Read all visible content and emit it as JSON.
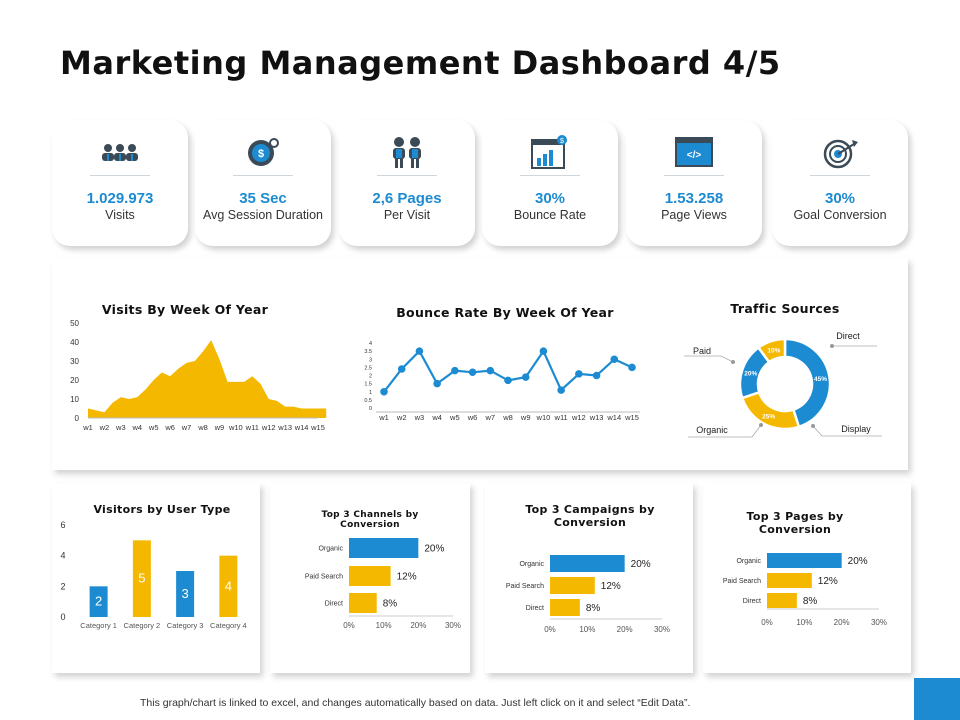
{
  "title": "Marketing Management Dashboard 4/5",
  "colors": {
    "blue": "#1c8bd1",
    "yellow": "#f5b800",
    "grey": "#9aa4ad"
  },
  "kpis": [
    {
      "icon": "people-group-icon",
      "value": "1.029.973",
      "label": "Visits"
    },
    {
      "icon": "session-timer-dollar-icon",
      "value": "35 Sec",
      "label": "Avg Session Duration"
    },
    {
      "icon": "two-people-icon",
      "value": "2,6 Pages",
      "label": "Per Visit"
    },
    {
      "icon": "analytics-bounce-icon",
      "value": "30%",
      "label": "Bounce Rate"
    },
    {
      "icon": "browser-code-icon",
      "value": "1.53.258",
      "label": "Page Views"
    },
    {
      "icon": "target-arrow-icon",
      "value": "30%",
      "label": "Goal Conversion"
    }
  ],
  "footer": "This graph/chart is linked to excel, and changes automatically based on data. Just left click on it and select “Edit Data”.",
  "chart_data": [
    {
      "id": "visits",
      "type": "area",
      "title": "Visits By Week Of Year",
      "categories": [
        "w1",
        "w2",
        "w3",
        "w4",
        "w5",
        "w6",
        "w7",
        "w8",
        "w9",
        "w10",
        "w11",
        "w12",
        "w13",
        "w14",
        "w15"
      ],
      "x": [
        0,
        0.5,
        1,
        1.5,
        2,
        2.5,
        3,
        3.5,
        4,
        4.5,
        5,
        5.5,
        6,
        6.5,
        7,
        7.5,
        8,
        8.5,
        9,
        9.5,
        10,
        10.5,
        11,
        11.5,
        12,
        12.5,
        13,
        13.5,
        14,
        14.5
      ],
      "values": [
        5,
        4,
        3,
        8,
        11,
        10,
        11,
        15,
        20,
        24,
        22,
        26,
        29,
        30,
        35,
        41,
        31,
        19,
        19,
        19,
        22,
        18,
        10,
        9,
        6,
        6,
        5,
        5,
        5,
        5
      ],
      "yticks": [
        0,
        10,
        20,
        30,
        40,
        50
      ],
      "ylim": [
        0,
        50
      ]
    },
    {
      "id": "bounce",
      "type": "line",
      "title": "Bounce Rate By Week Of Year",
      "categories": [
        "w1",
        "w2",
        "w3",
        "w4",
        "w5",
        "w6",
        "w7",
        "w8",
        "w9",
        "w10",
        "w11",
        "w12",
        "w13",
        "w14",
        "w15"
      ],
      "values": [
        1.0,
        2.4,
        3.5,
        1.5,
        2.3,
        2.2,
        2.3,
        1.7,
        1.9,
        3.5,
        1.1,
        2.1,
        2.0,
        3.0,
        2.5
      ],
      "yticks": [
        "0",
        "0.5",
        "1",
        "1.5",
        "2",
        "2.5",
        "3",
        "3.5",
        "4"
      ],
      "ylim": [
        0,
        4
      ]
    },
    {
      "id": "traffic",
      "type": "pie",
      "title": "Traffic Sources",
      "slices": [
        {
          "name": "Direct",
          "value": 45,
          "label": "45%"
        },
        {
          "name": "Display",
          "value": 25,
          "label": "25%"
        },
        {
          "name": "Organic",
          "value": 20,
          "label": "20%"
        },
        {
          "name": "Paid",
          "value": 10,
          "label": "10%"
        }
      ]
    },
    {
      "id": "usertype",
      "type": "bar",
      "title": "Visitors by User Type",
      "categories": [
        "Category 1",
        "Category 2",
        "Category 3",
        "Category 4"
      ],
      "values": [
        2,
        5,
        3,
        4
      ],
      "labels": [
        "2",
        "5",
        "3",
        "4"
      ],
      "yticks": [
        "0",
        "2",
        "4",
        "6"
      ],
      "ylim": [
        0,
        6
      ]
    },
    {
      "id": "channels",
      "type": "bar",
      "title": "Top 3 Channels  by Conversion",
      "categories": [
        "Organic",
        "Paid Search",
        "Direct"
      ],
      "values": [
        20,
        12,
        8
      ],
      "labels": [
        "20%",
        "12%",
        "8%"
      ],
      "xticks": [
        "0%",
        "10%",
        "20%",
        "30%"
      ],
      "xlim": [
        0,
        30
      ]
    },
    {
      "id": "campaigns",
      "type": "bar",
      "title": "Top 3 Campaigns by Conversion",
      "categories": [
        "Organic",
        "Paid Search",
        "Direct"
      ],
      "values": [
        20,
        12,
        8
      ],
      "labels": [
        "20%",
        "12%",
        "8%"
      ],
      "xticks": [
        "0%",
        "10%",
        "20%",
        "30%"
      ],
      "xlim": [
        0,
        30
      ]
    },
    {
      "id": "pages",
      "type": "bar",
      "title": "Top 3 Pages by Conversion",
      "categories": [
        "Organic",
        "Paid Search",
        "Direct"
      ],
      "values": [
        20,
        12,
        8
      ],
      "labels": [
        "20%",
        "12%",
        "8%"
      ],
      "xticks": [
        "0%",
        "10%",
        "20%",
        "30%"
      ],
      "xlim": [
        0,
        30
      ]
    }
  ]
}
